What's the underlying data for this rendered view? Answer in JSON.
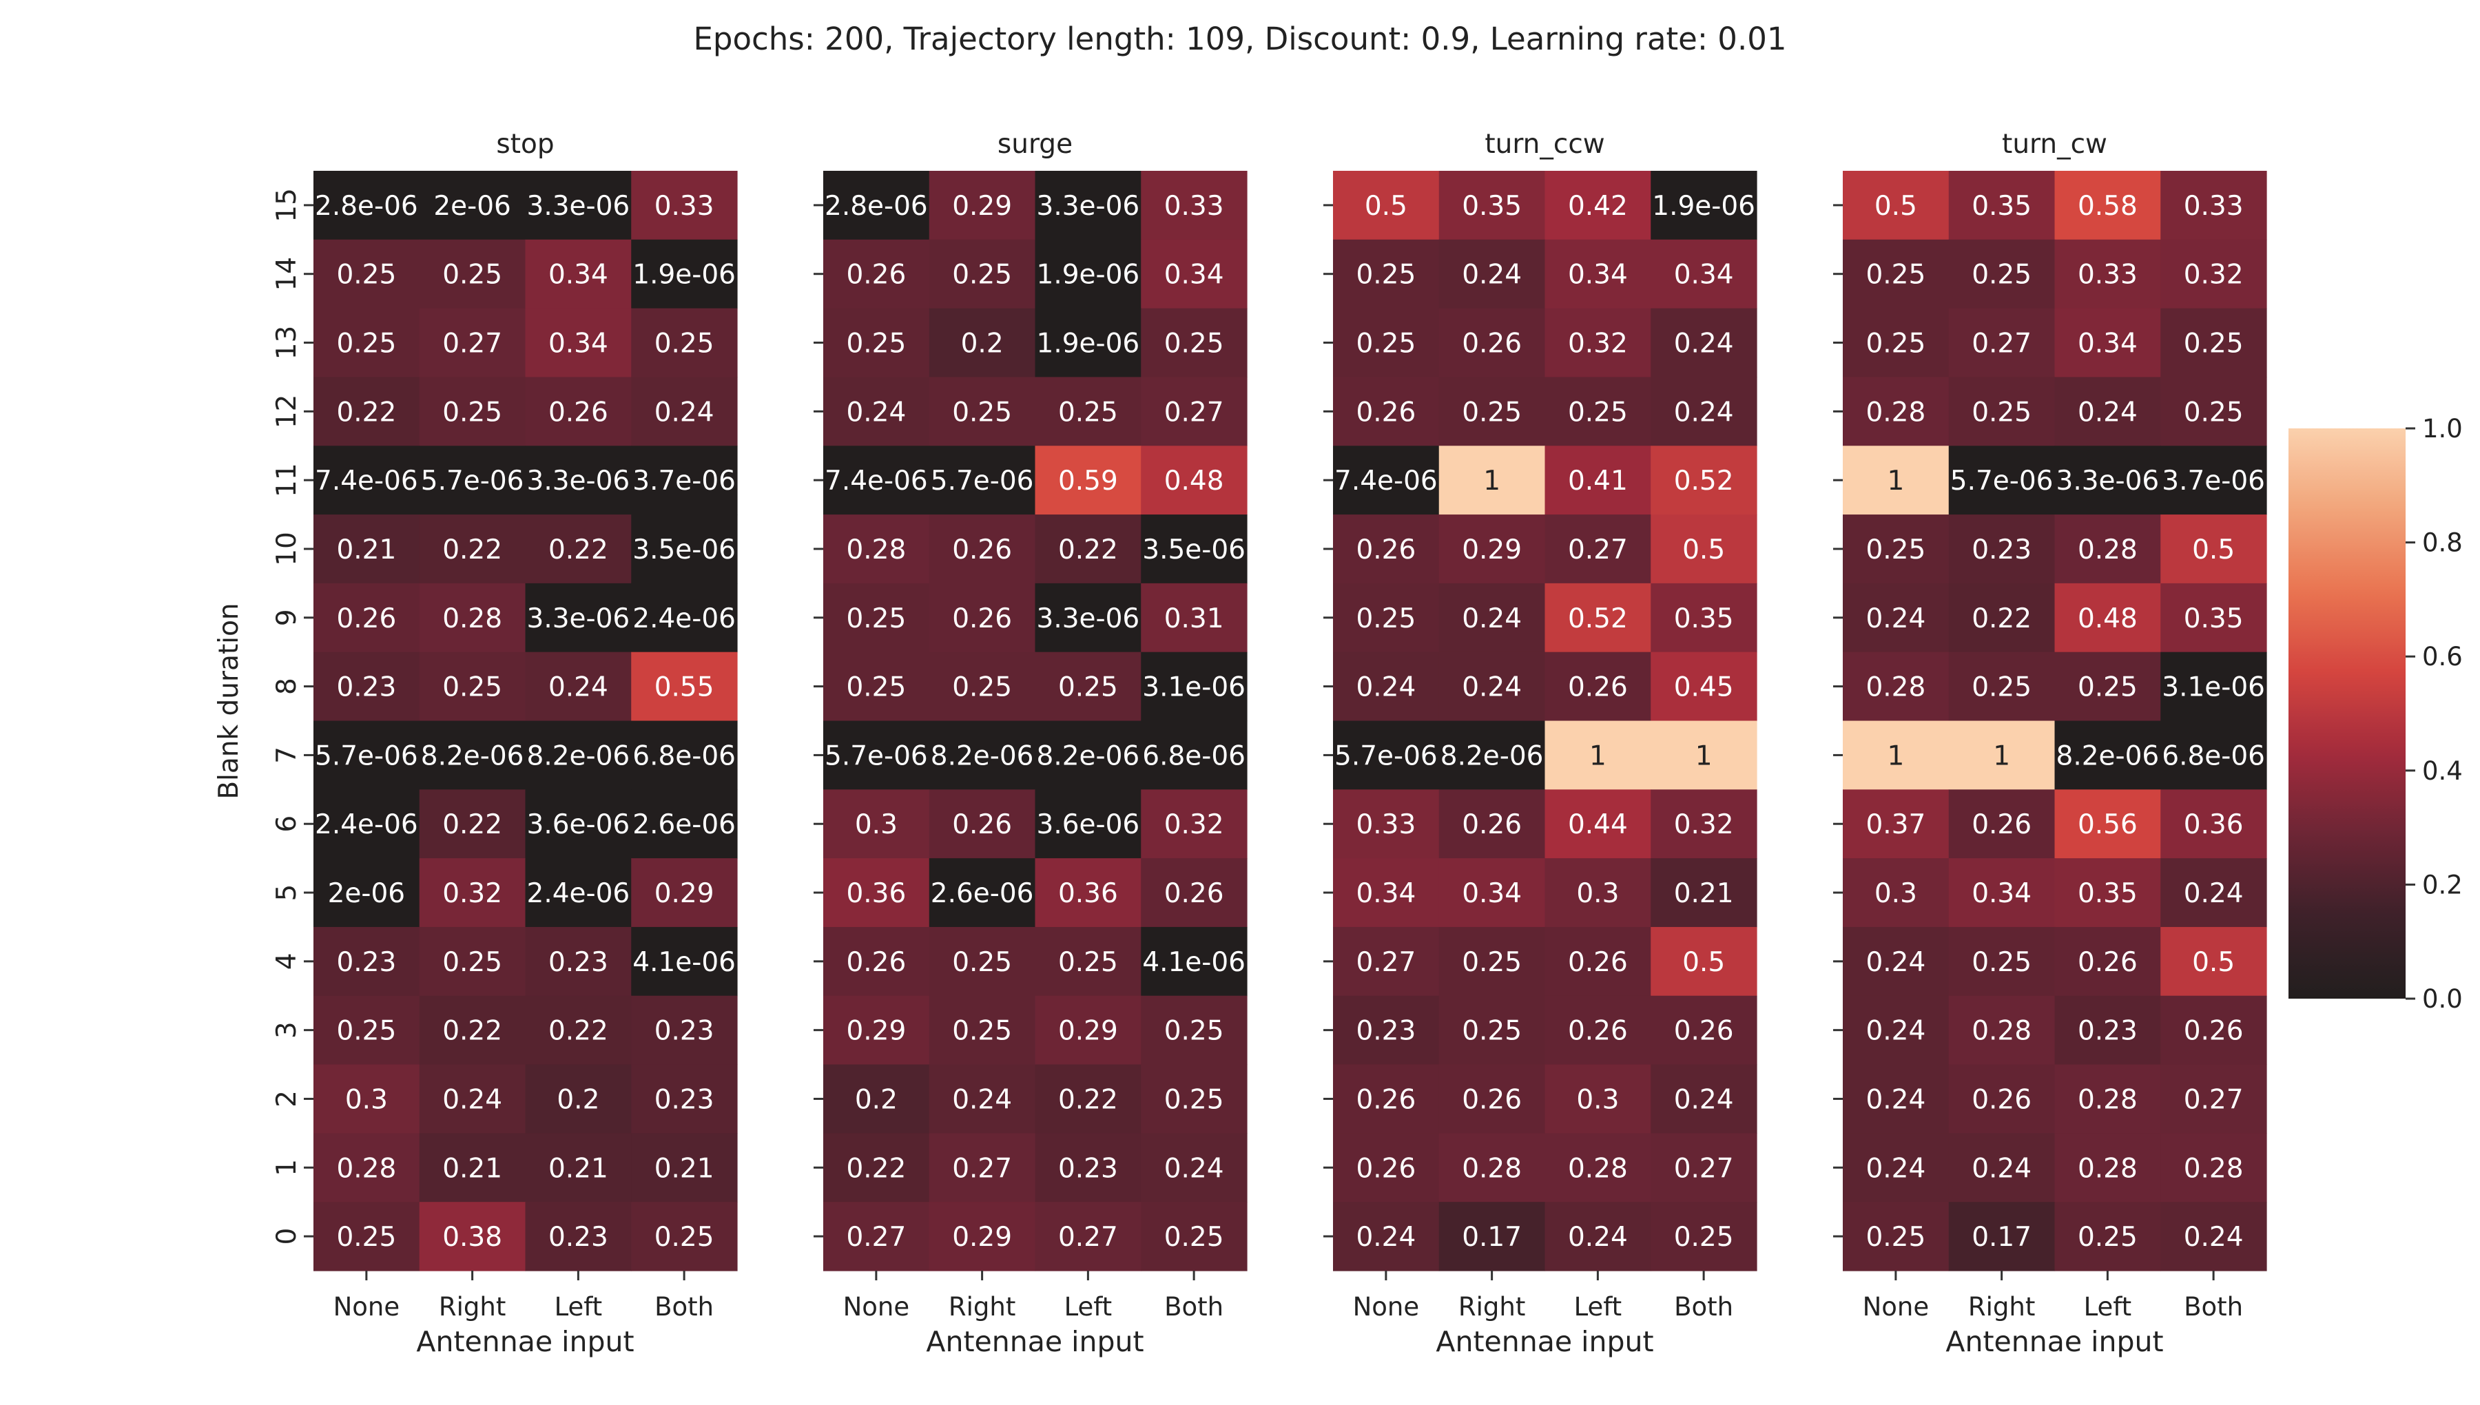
{
  "figure": {
    "title": "Epochs: 200, Trajectory length: 109, Discount: 0.9, Learning rate: 0.01"
  },
  "chart_data": {
    "type": "heatmap",
    "ylabel": "Blank duration",
    "xlabel": "Antennae input",
    "x_categories": [
      "None",
      "Right",
      "Left",
      "Both"
    ],
    "y_categories": [
      "15",
      "14",
      "13",
      "12",
      "11",
      "10",
      "9",
      "8",
      "7",
      "6",
      "5",
      "4",
      "3",
      "2",
      "1",
      "0"
    ],
    "colorbar": {
      "min": 0.0,
      "max": 1.0,
      "ticks": [
        "0.0",
        "0.2",
        "0.4",
        "0.6",
        "0.8",
        "1.0"
      ],
      "colormap": "rocket-dark-center",
      "colors": [
        "#221e1e",
        "#3d2129",
        "#6b2535",
        "#a22b3c",
        "#d4453f",
        "#e97451",
        "#f1a47a",
        "#fbd1ad"
      ]
    },
    "panels": [
      {
        "title": "stop",
        "labels": [
          [
            "2.8e-06",
            "2e-06",
            "3.3e-06",
            "0.33"
          ],
          [
            "0.25",
            "0.25",
            "0.34",
            "1.9e-06"
          ],
          [
            "0.25",
            "0.27",
            "0.34",
            "0.25"
          ],
          [
            "0.22",
            "0.25",
            "0.26",
            "0.24"
          ],
          [
            "7.4e-06",
            "5.7e-06",
            "3.3e-06",
            "3.7e-06"
          ],
          [
            "0.21",
            "0.22",
            "0.22",
            "3.5e-06"
          ],
          [
            "0.26",
            "0.28",
            "3.3e-06",
            "2.4e-06"
          ],
          [
            "0.23",
            "0.25",
            "0.24",
            "0.55"
          ],
          [
            "5.7e-06",
            "8.2e-06",
            "8.2e-06",
            "6.8e-06"
          ],
          [
            "2.4e-06",
            "0.22",
            "3.6e-06",
            "2.6e-06"
          ],
          [
            "2e-06",
            "0.32",
            "2.4e-06",
            "0.29"
          ],
          [
            "0.23",
            "0.25",
            "0.23",
            "4.1e-06"
          ],
          [
            "0.25",
            "0.22",
            "0.22",
            "0.23"
          ],
          [
            "0.3",
            "0.24",
            "0.2",
            "0.23"
          ],
          [
            "0.28",
            "0.21",
            "0.21",
            "0.21"
          ],
          [
            "0.25",
            "0.38",
            "0.23",
            "0.25"
          ]
        ]
      },
      {
        "title": "surge",
        "labels": [
          [
            "2.8e-06",
            "0.29",
            "3.3e-06",
            "0.33"
          ],
          [
            "0.26",
            "0.25",
            "1.9e-06",
            "0.34"
          ],
          [
            "0.25",
            "0.2",
            "1.9e-06",
            "0.25"
          ],
          [
            "0.24",
            "0.25",
            "0.25",
            "0.27"
          ],
          [
            "7.4e-06",
            "5.7e-06",
            "0.59",
            "0.48"
          ],
          [
            "0.28",
            "0.26",
            "0.22",
            "3.5e-06"
          ],
          [
            "0.25",
            "0.26",
            "3.3e-06",
            "0.31"
          ],
          [
            "0.25",
            "0.25",
            "0.25",
            "3.1e-06"
          ],
          [
            "5.7e-06",
            "8.2e-06",
            "8.2e-06",
            "6.8e-06"
          ],
          [
            "0.3",
            "0.26",
            "3.6e-06",
            "0.32"
          ],
          [
            "0.36",
            "2.6e-06",
            "0.36",
            "0.26"
          ],
          [
            "0.26",
            "0.25",
            "0.25",
            "4.1e-06"
          ],
          [
            "0.29",
            "0.25",
            "0.29",
            "0.25"
          ],
          [
            "0.2",
            "0.24",
            "0.22",
            "0.25"
          ],
          [
            "0.22",
            "0.27",
            "0.23",
            "0.24"
          ],
          [
            "0.27",
            "0.29",
            "0.27",
            "0.25"
          ]
        ]
      },
      {
        "title": "turn_ccw",
        "labels": [
          [
            "0.5",
            "0.35",
            "0.42",
            "1.9e-06"
          ],
          [
            "0.25",
            "0.24",
            "0.34",
            "0.34"
          ],
          [
            "0.25",
            "0.26",
            "0.32",
            "0.24"
          ],
          [
            "0.26",
            "0.25",
            "0.25",
            "0.24"
          ],
          [
            "7.4e-06",
            "1",
            "0.41",
            "0.52"
          ],
          [
            "0.26",
            "0.29",
            "0.27",
            "0.5"
          ],
          [
            "0.25",
            "0.24",
            "0.52",
            "0.35"
          ],
          [
            "0.24",
            "0.24",
            "0.26",
            "0.45"
          ],
          [
            "5.7e-06",
            "8.2e-06",
            "1",
            "1"
          ],
          [
            "0.33",
            "0.26",
            "0.44",
            "0.32"
          ],
          [
            "0.34",
            "0.34",
            "0.3",
            "0.21"
          ],
          [
            "0.27",
            "0.25",
            "0.26",
            "0.5"
          ],
          [
            "0.23",
            "0.25",
            "0.26",
            "0.26"
          ],
          [
            "0.26",
            "0.26",
            "0.3",
            "0.24"
          ],
          [
            "0.26",
            "0.28",
            "0.28",
            "0.27"
          ],
          [
            "0.24",
            "0.17",
            "0.24",
            "0.25"
          ]
        ]
      },
      {
        "title": "turn_cw",
        "labels": [
          [
            "0.5",
            "0.35",
            "0.58",
            "0.33"
          ],
          [
            "0.25",
            "0.25",
            "0.33",
            "0.32"
          ],
          [
            "0.25",
            "0.27",
            "0.34",
            "0.25"
          ],
          [
            "0.28",
            "0.25",
            "0.24",
            "0.25"
          ],
          [
            "1",
            "5.7e-06",
            "3.3e-06",
            "3.7e-06"
          ],
          [
            "0.25",
            "0.23",
            "0.28",
            "0.5"
          ],
          [
            "0.24",
            "0.22",
            "0.48",
            "0.35"
          ],
          [
            "0.28",
            "0.25",
            "0.25",
            "3.1e-06"
          ],
          [
            "1",
            "1",
            "8.2e-06",
            "6.8e-06"
          ],
          [
            "0.37",
            "0.26",
            "0.56",
            "0.36"
          ],
          [
            "0.3",
            "0.34",
            "0.35",
            "0.24"
          ],
          [
            "0.24",
            "0.25",
            "0.26",
            "0.5"
          ],
          [
            "0.24",
            "0.28",
            "0.23",
            "0.26"
          ],
          [
            "0.24",
            "0.26",
            "0.28",
            "0.27"
          ],
          [
            "0.24",
            "0.24",
            "0.28",
            "0.28"
          ],
          [
            "0.25",
            "0.17",
            "0.25",
            "0.24"
          ]
        ]
      }
    ]
  }
}
